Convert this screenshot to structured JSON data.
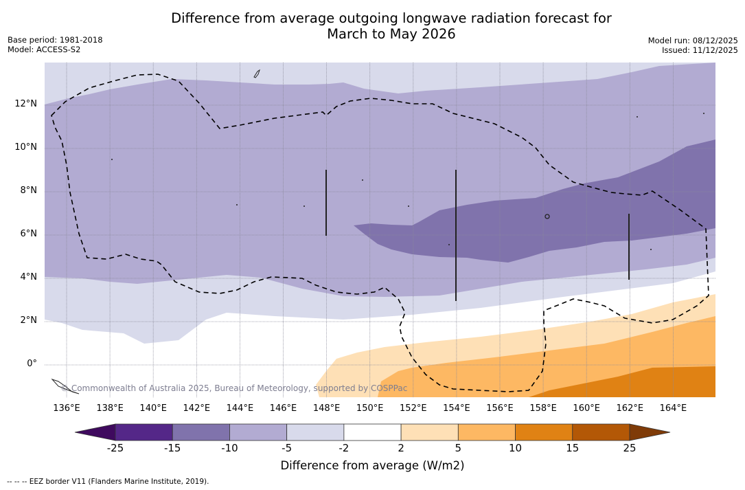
{
  "title_line1": "Difference from average outgoing longwave radiation forecast for",
  "title_line2": "March to May 2026",
  "meta": {
    "base_period": "Base period: 1981-2018",
    "model": "Model: ACCESS-S2",
    "model_run": "Model run: 08/12/2025",
    "issued": "Issued: 11/12/2025"
  },
  "map": {
    "lon_range": [
      135,
      166
    ],
    "lat_range": [
      -1.5,
      14
    ],
    "lat_ticks": [
      {
        "value": 12,
        "label": "12°N"
      },
      {
        "value": 10,
        "label": "10°N"
      },
      {
        "value": 8,
        "label": "8°N"
      },
      {
        "value": 6,
        "label": "6°N"
      },
      {
        "value": 4,
        "label": "4°N"
      },
      {
        "value": 2,
        "label": "2°N"
      },
      {
        "value": 0,
        "label": "0°"
      }
    ],
    "lon_ticks": [
      {
        "value": 136,
        "label": "136°E"
      },
      {
        "value": 138,
        "label": "138°E"
      },
      {
        "value": 140,
        "label": "140°E"
      },
      {
        "value": 142,
        "label": "142°E"
      },
      {
        "value": 144,
        "label": "144°E"
      },
      {
        "value": 146,
        "label": "146°E"
      },
      {
        "value": 148,
        "label": "148°E"
      },
      {
        "value": 150,
        "label": "150°E"
      },
      {
        "value": 152,
        "label": "152°E"
      },
      {
        "value": 154,
        "label": "154°E"
      },
      {
        "value": 156,
        "label": "156°E"
      },
      {
        "value": 158,
        "label": "158°E"
      },
      {
        "value": 160,
        "label": "160°E"
      },
      {
        "value": 162,
        "label": "162°E"
      },
      {
        "value": 164,
        "label": "164°E"
      }
    ],
    "copyright": "© Commonwealth of Australia 2025, Bureau of Meteorology, supported by COSPPac"
  },
  "colorbar": {
    "label": "Difference from average (W/m2)",
    "levels": [
      -25,
      -15,
      -10,
      -5,
      -2,
      2,
      5,
      10,
      15,
      25
    ],
    "tick_labels": [
      "-25",
      "-15",
      "-10",
      "-5",
      "-2",
      "2",
      "5",
      "10",
      "15",
      "25"
    ],
    "under_color": "#3f0a5e",
    "over_color": "#7f3b08",
    "colors": [
      "#542788",
      "#8073ac",
      "#b2abd2",
      "#d8daeb",
      "#ffffff",
      "#fee0b6",
      "#fdb863",
      "#e08214",
      "#b35806"
    ]
  },
  "footer": "--  --  -- EEZ border V11 (Flanders Marine Institute, 2019)."
}
